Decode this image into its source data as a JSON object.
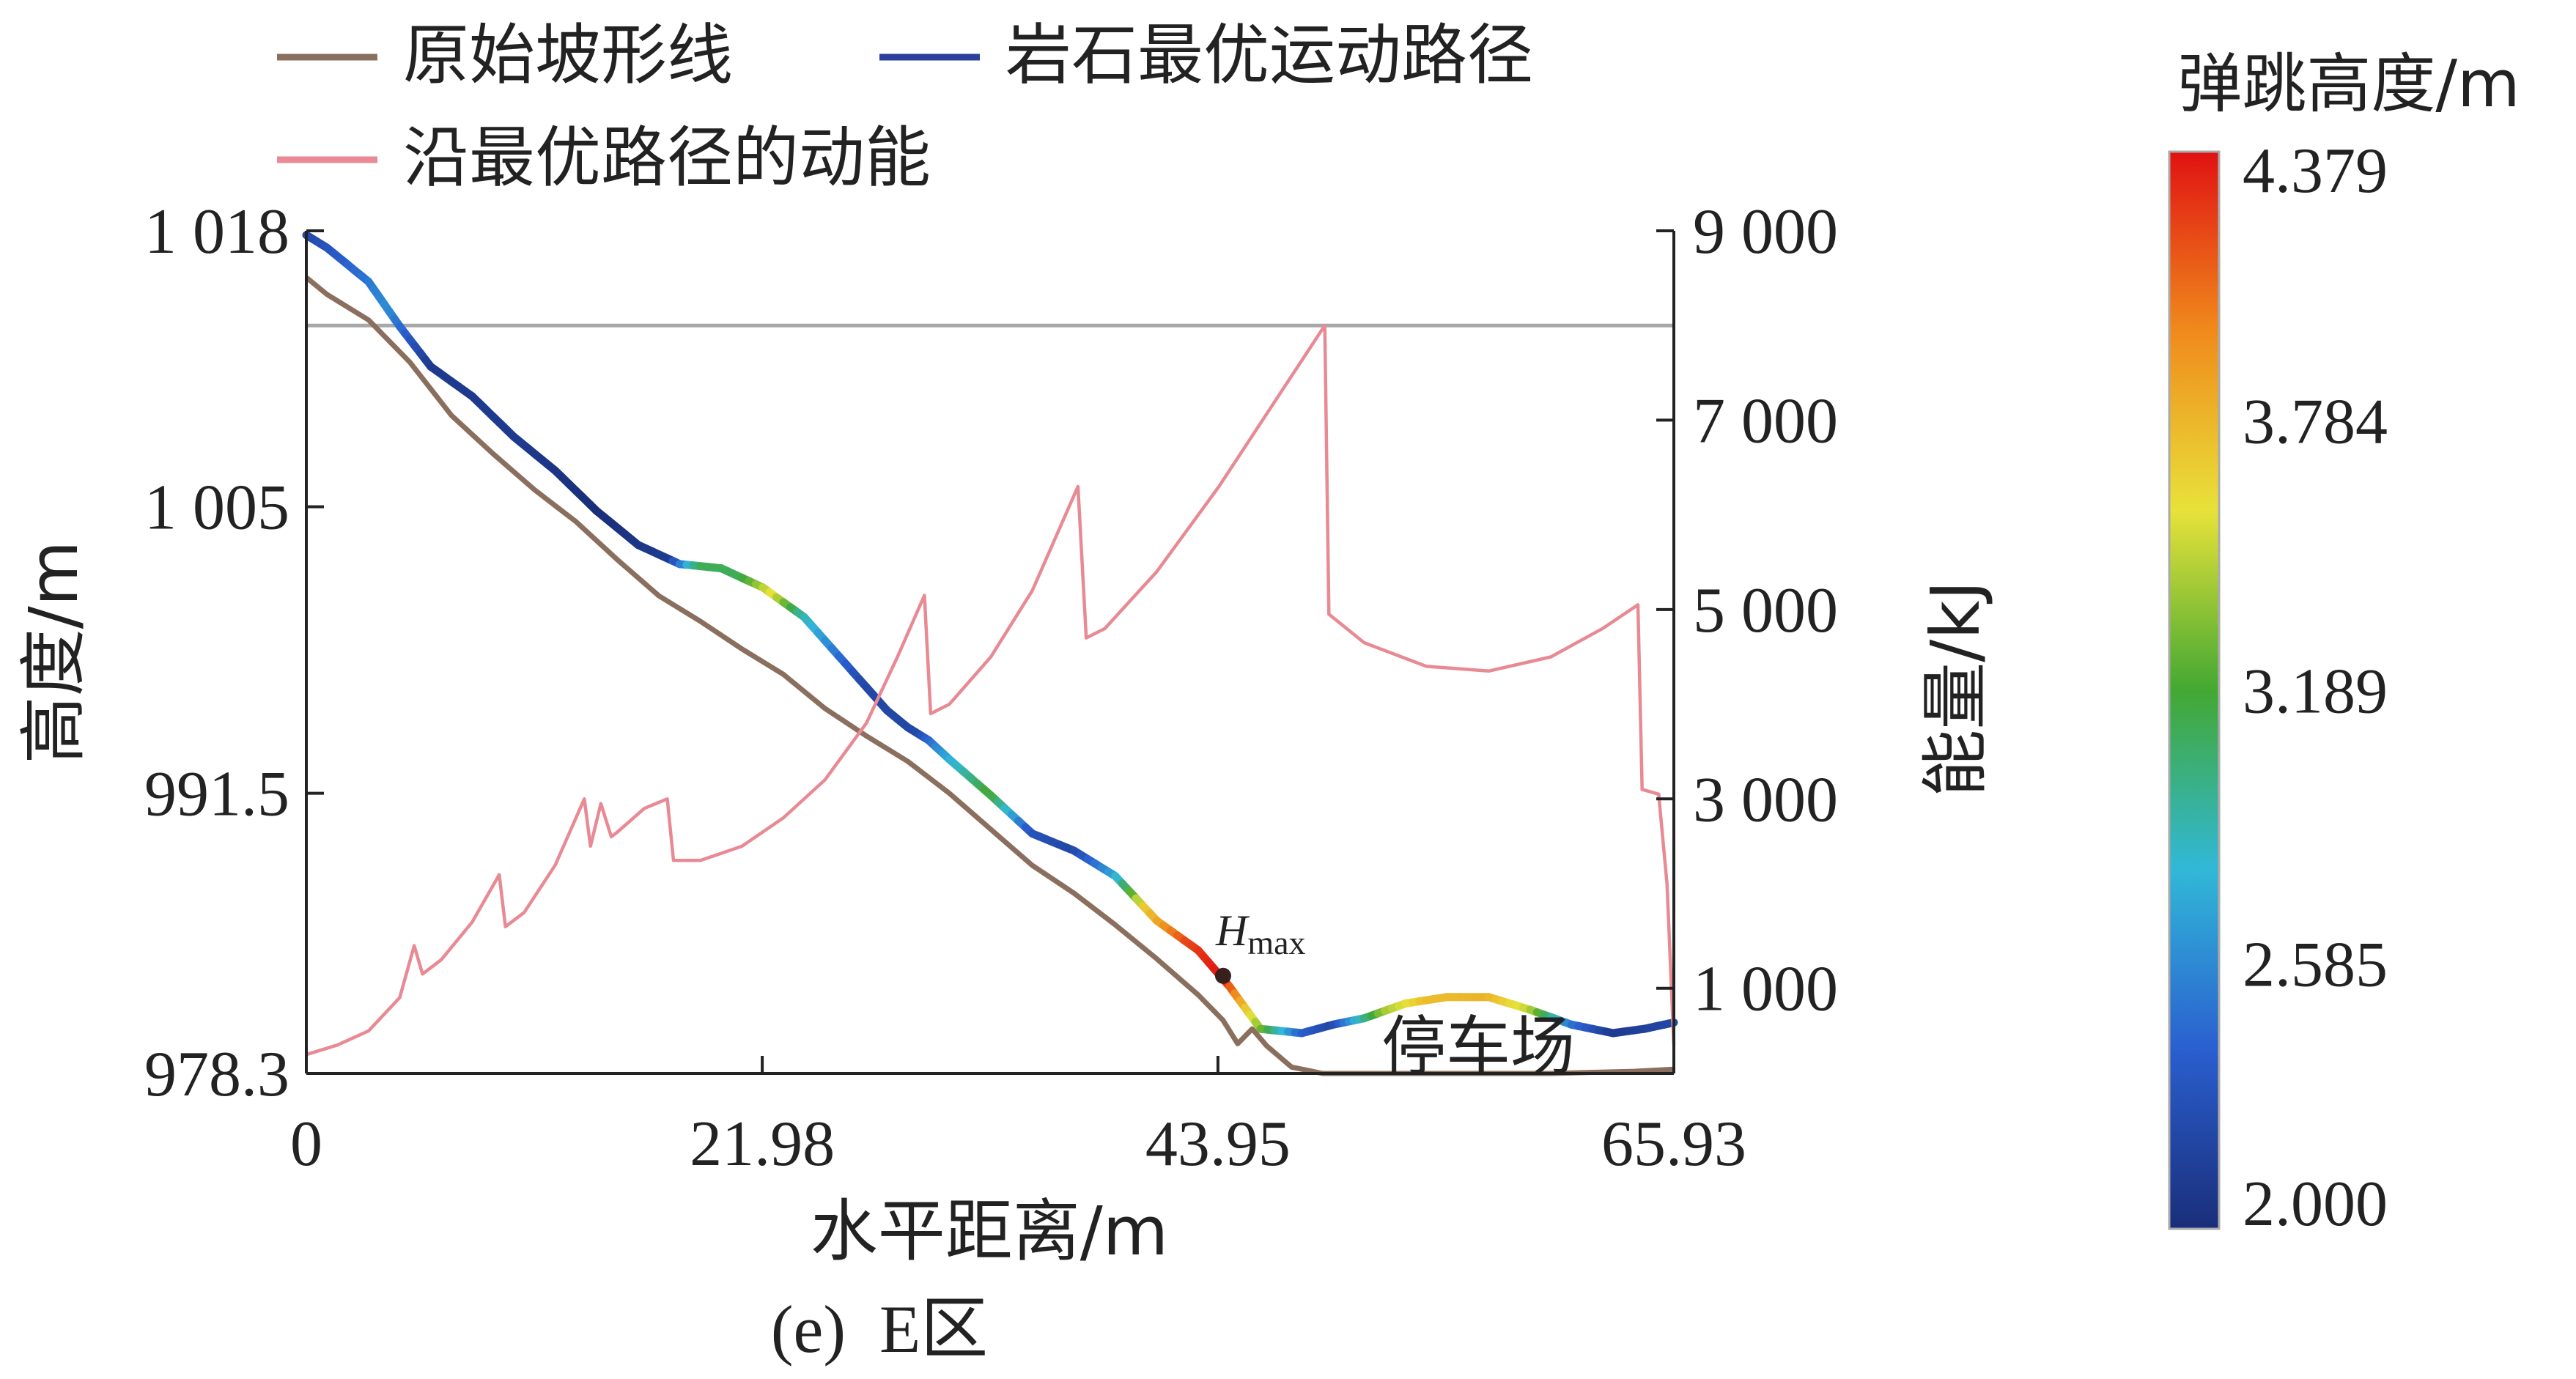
{
  "chart_data": {
    "type": "line",
    "caption": "(e)  E区",
    "x_axis": {
      "label": "水平距离/m",
      "ticks": [
        0,
        21.98,
        43.95,
        65.93
      ],
      "tick_labels": [
        "0",
        "21.98",
        "43.95",
        "65.93"
      ],
      "range": [
        0,
        65.93
      ]
    },
    "y_axis_left": {
      "label": "高度/m",
      "ticks": [
        978.3,
        991.5,
        1005,
        1018
      ],
      "tick_labels": [
        "978.3",
        "991.5",
        "1 005",
        "1 018"
      ],
      "range": [
        978.3,
        1018
      ]
    },
    "y_axis_right": {
      "label": "能量/kJ",
      "ticks": [
        1000,
        3000,
        5000,
        7000,
        9000
      ],
      "tick_labels": [
        "1 000",
        "3 000",
        "5 000",
        "7 000",
        "9 000"
      ],
      "range": [
        100,
        9000
      ]
    },
    "legend": {
      "position": "top",
      "entries": [
        {
          "label": "原始坡形线",
          "color": "#8b6f5e"
        },
        {
          "label": "岩石最优运动路径",
          "color": "#2b3f9c"
        },
        {
          "label": "沿最优路径的动能",
          "color": "#e88a93"
        }
      ]
    },
    "colorbar": {
      "label": "弹跳高度/m",
      "ticks": [
        "4.379",
        "3.784",
        "3.189",
        "2.585",
        "2.000"
      ],
      "min": 2.0,
      "max": 4.379,
      "colors": [
        "#1a2e7a",
        "#2a5fcf",
        "#31b8d8",
        "#43a832",
        "#e8e23a",
        "#f08a1c",
        "#e01212"
      ]
    },
    "horizontal_reference_energy": 8000,
    "series": [
      {
        "name": "原始坡形线",
        "x": [
          0,
          1,
          3,
          5,
          7,
          9,
          11,
          13,
          15,
          17,
          19,
          21,
          23,
          25,
          27,
          29,
          31,
          33,
          35,
          37,
          39,
          41,
          43,
          44.2,
          44.9,
          45.6,
          46.3,
          47.5,
          49,
          52,
          56,
          60,
          64,
          65.93
        ],
        "y": [
          1015.8,
          1015.0,
          1013.8,
          1011.8,
          1009.3,
          1007.5,
          1005.8,
          1004.3,
          1002.5,
          1000.8,
          999.6,
          998.3,
          997.1,
          995.5,
          994.2,
          993.0,
          991.5,
          989.8,
          988.1,
          986.8,
          985.3,
          983.7,
          982.0,
          980.8,
          979.7,
          980.4,
          979.6,
          978.6,
          978.3,
          978.3,
          978.3,
          978.3,
          978.4,
          978.5
        ]
      },
      {
        "name": "岩石最优运动路径",
        "x": [
          0,
          1,
          3,
          4.5,
          6,
          8,
          10,
          12,
          14,
          16,
          18,
          20,
          22,
          24,
          26,
          28,
          29,
          30,
          31,
          33,
          35,
          37,
          39,
          41,
          43,
          44.5,
          46,
          48,
          49.5,
          51,
          53,
          55,
          57,
          59,
          61,
          63,
          64.5,
          65.93
        ],
        "y": [
          1017.8,
          1017.2,
          1015.6,
          1013.5,
          1011.6,
          1010.2,
          1008.3,
          1006.7,
          1004.8,
          1003.2,
          1002.3,
          1002.1,
          1001.2,
          999.8,
          997.6,
          995.4,
          994.6,
          994.0,
          993.1,
          991.4,
          989.6,
          988.8,
          987.6,
          985.5,
          984.1,
          982.4,
          980.4,
          980.2,
          980.6,
          980.9,
          981.6,
          981.9,
          981.9,
          981.3,
          980.6,
          980.2,
          980.4,
          980.7
        ]
      },
      {
        "name": "沿最优路径的动能",
        "x": [
          0,
          1.5,
          3,
          4.5,
          5.2,
          5.6,
          6.5,
          8,
          9.3,
          9.6,
          10.5,
          12,
          13.4,
          13.7,
          14.2,
          14.7,
          15,
          16.3,
          17.4,
          17.7,
          19,
          21,
          23,
          25,
          27,
          28.5,
          29.8,
          30.1,
          31,
          33,
          35,
          37.2,
          37.6,
          38.5,
          41,
          44,
          47,
          49.1,
          49.3,
          51,
          54,
          57,
          60,
          62.5,
          64.2,
          64.4,
          65.2,
          65.6,
          65.93
        ],
        "y": [
          300,
          400,
          550,
          900,
          1450,
          1150,
          1300,
          1700,
          2200,
          1650,
          1800,
          2300,
          3000,
          2500,
          2950,
          2600,
          2650,
          2900,
          3000,
          2350,
          2350,
          2500,
          2800,
          3200,
          3800,
          4500,
          5150,
          3900,
          4000,
          4500,
          5200,
          6300,
          4700,
          4800,
          5400,
          6300,
          7300,
          8000,
          4950,
          4650,
          4400,
          4350,
          4500,
          4800,
          5050,
          3100,
          3050,
          2100,
          400
        ]
      }
    ],
    "annotations": [
      {
        "text": "H",
        "subscript": "max",
        "x": 44.2,
        "y": 982.9
      },
      {
        "text": "停车场",
        "x": 56.5,
        "y": 980.6
      }
    ]
  }
}
